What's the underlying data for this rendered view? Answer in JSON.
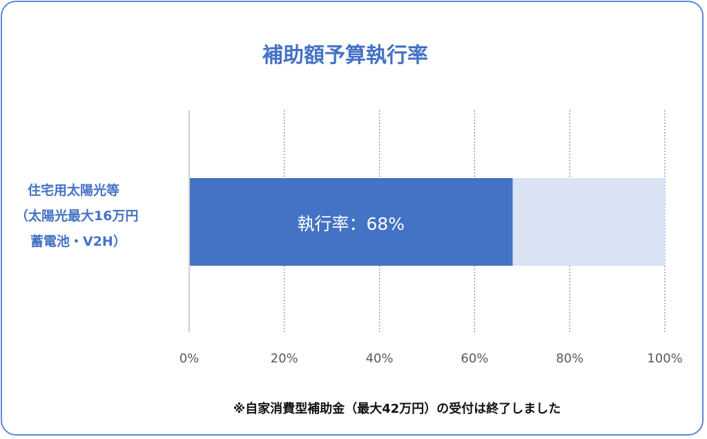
{
  "chart_data": {
    "type": "bar",
    "orientation": "horizontal",
    "stacked_100": true,
    "title": "補助額予算執行率",
    "categories": [
      "住宅用太陽光等（太陽光最大16万円 蓄電池・V2H）"
    ],
    "category_label_lines": [
      "住宅用太陽光等",
      "（太陽光最大16万円",
      "蓄電池・V2H）"
    ],
    "series": [
      {
        "values": [
          68
        ],
        "color": "#4472c4"
      },
      {
        "values": [
          32
        ],
        "color": "#dae3f3"
      }
    ],
    "data_label": "執行率：68%",
    "xlim": [
      0,
      100
    ],
    "x_ticks": [
      "0%",
      "20%",
      "40%",
      "60%",
      "80%",
      "100%"
    ],
    "grid": "vertical dotted",
    "legend": "none"
  },
  "note": "※自家消費型補助金（最大42万円）の受付は終了しました"
}
